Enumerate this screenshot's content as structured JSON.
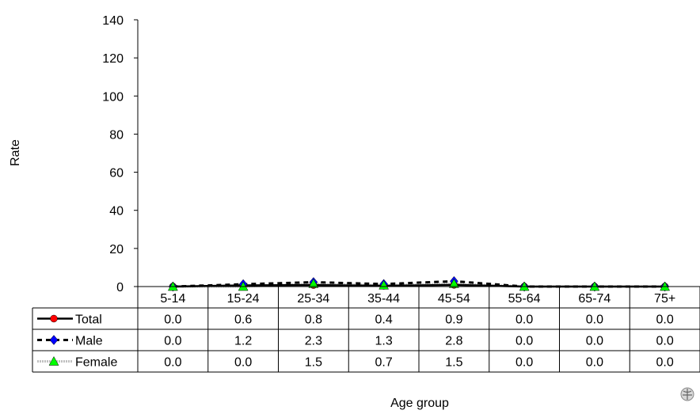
{
  "chart_data": {
    "type": "line",
    "title": "",
    "xlabel": "Age group",
    "ylabel": "Rate",
    "ylim": [
      0,
      140
    ],
    "yticks": [
      0,
      20,
      40,
      60,
      80,
      100,
      120,
      140
    ],
    "grid": false,
    "legend": "data-table-left",
    "categories": [
      "5-14",
      "15-24",
      "25-34",
      "35-44",
      "45-54",
      "55-64",
      "65-74",
      "75+"
    ],
    "series": [
      {
        "name": "Total",
        "color": "#000000",
        "marker": "circle",
        "marker_color": "#ff0000",
        "line": "solid",
        "values": [
          0.0,
          0.6,
          0.8,
          0.4,
          0.9,
          0.0,
          0.0,
          0.0
        ]
      },
      {
        "name": "Male",
        "color": "#000000",
        "marker": "diamond",
        "marker_color": "#0000ff",
        "line": "dashed",
        "values": [
          0.0,
          1.2,
          2.3,
          1.3,
          2.8,
          0.0,
          0.0,
          0.0
        ]
      },
      {
        "name": "Female",
        "color": "#c0c0c0",
        "marker": "triangle",
        "marker_color": "#00ff00",
        "line": "dotted",
        "values": [
          0.0,
          0.0,
          1.5,
          0.7,
          1.5,
          0.0,
          0.0,
          0.0
        ]
      }
    ],
    "table_values": [
      [
        "0.0",
        "0.6",
        "0.8",
        "0.4",
        "0.9",
        "0.0",
        "0.0",
        "0.0"
      ],
      [
        "0.0",
        "1.2",
        "2.3",
        "1.3",
        "2.8",
        "0.0",
        "0.0",
        "0.0"
      ],
      [
        "0.0",
        "0.0",
        "1.5",
        "0.7",
        "1.5",
        "0.0",
        "0.0",
        "0.0"
      ]
    ]
  },
  "emblem_icon": "who-emblem-icon"
}
